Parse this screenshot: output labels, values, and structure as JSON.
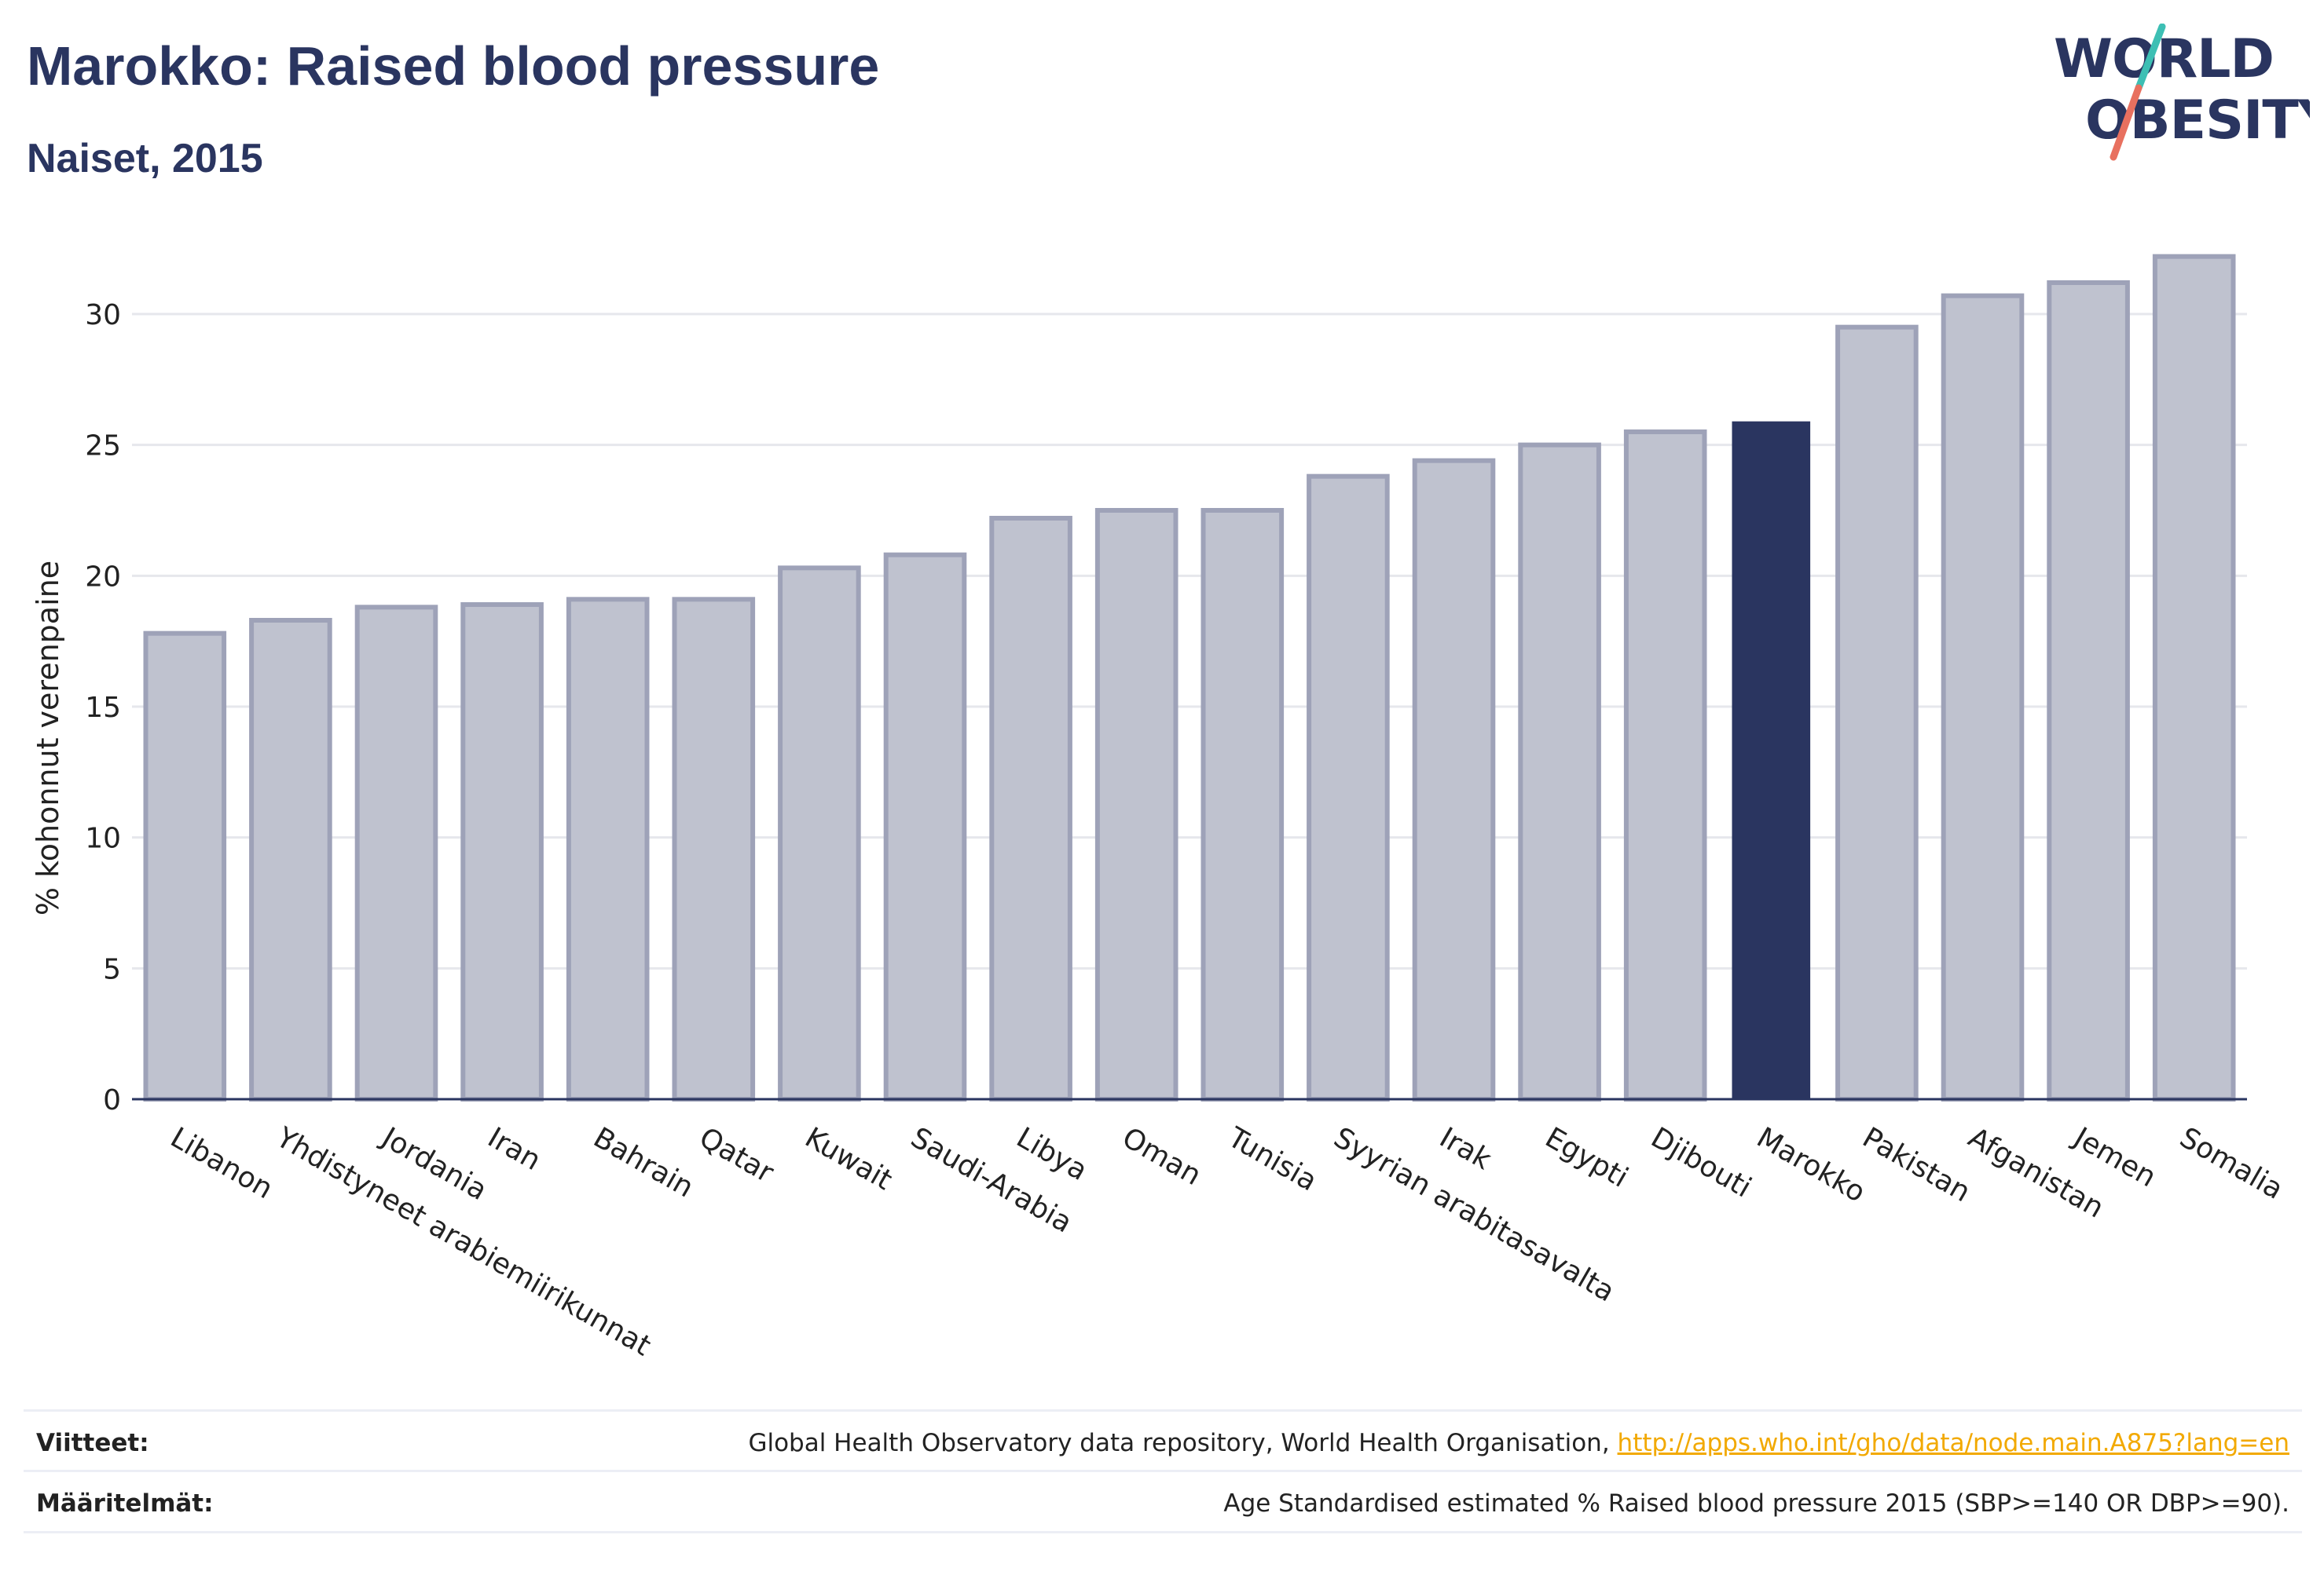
{
  "header": {
    "title": "Marokko: Raised blood pressure",
    "subtitle": "Naiset, 2015"
  },
  "logo": {
    "line1": "WORLD",
    "line2": "OBESITY",
    "colors": {
      "text": "#2a3560",
      "slash_top": "#3dbfb4",
      "slash_bottom": "#e8705f"
    }
  },
  "chart_data": {
    "type": "bar",
    "categories": [
      "Libanon",
      "Yhdistyneet arabiemiirikunnat",
      "Jordania",
      "Iran",
      "Bahrain",
      "Qatar",
      "Kuwait",
      "Saudi-Arabia",
      "Libya",
      "Oman",
      "Tunisia",
      "Syyrian arabitasavalta",
      "Irak",
      "Egypti",
      "Djibouti",
      "Marokko",
      "Pakistan",
      "Afganistan",
      "Jemen",
      "Somalia"
    ],
    "values": [
      17.8,
      18.3,
      18.8,
      18.9,
      19.1,
      19.1,
      20.3,
      20.8,
      22.2,
      22.5,
      22.5,
      23.8,
      24.4,
      25.0,
      25.5,
      25.9,
      29.5,
      30.7,
      31.2,
      32.2
    ],
    "highlight": "Marokko",
    "ylabel": "% kohonnut verenpaine",
    "xlabel": "",
    "ylim": [
      0,
      33
    ],
    "yticks": [
      0,
      5,
      10,
      15,
      20,
      25,
      30
    ],
    "grid": true,
    "colors": {
      "bar": "#bfc2cf",
      "bar_stroke": "#9ea2b8",
      "highlight": "#2a3560",
      "grid": "#e6e7ec",
      "axis": "#2a3560"
    }
  },
  "footer": {
    "references_label": "Viitteet:",
    "references_text": "Global Health Observatory data repository, World Health Organisation, ",
    "references_link": "http://apps.who.int/gho/data/node.main.A875?lang=en",
    "definitions_label": "Määritelmät:",
    "definitions_text": "Age Standardised estimated % Raised blood pressure 2015 (SBP>=140 OR DBP>=90)."
  }
}
